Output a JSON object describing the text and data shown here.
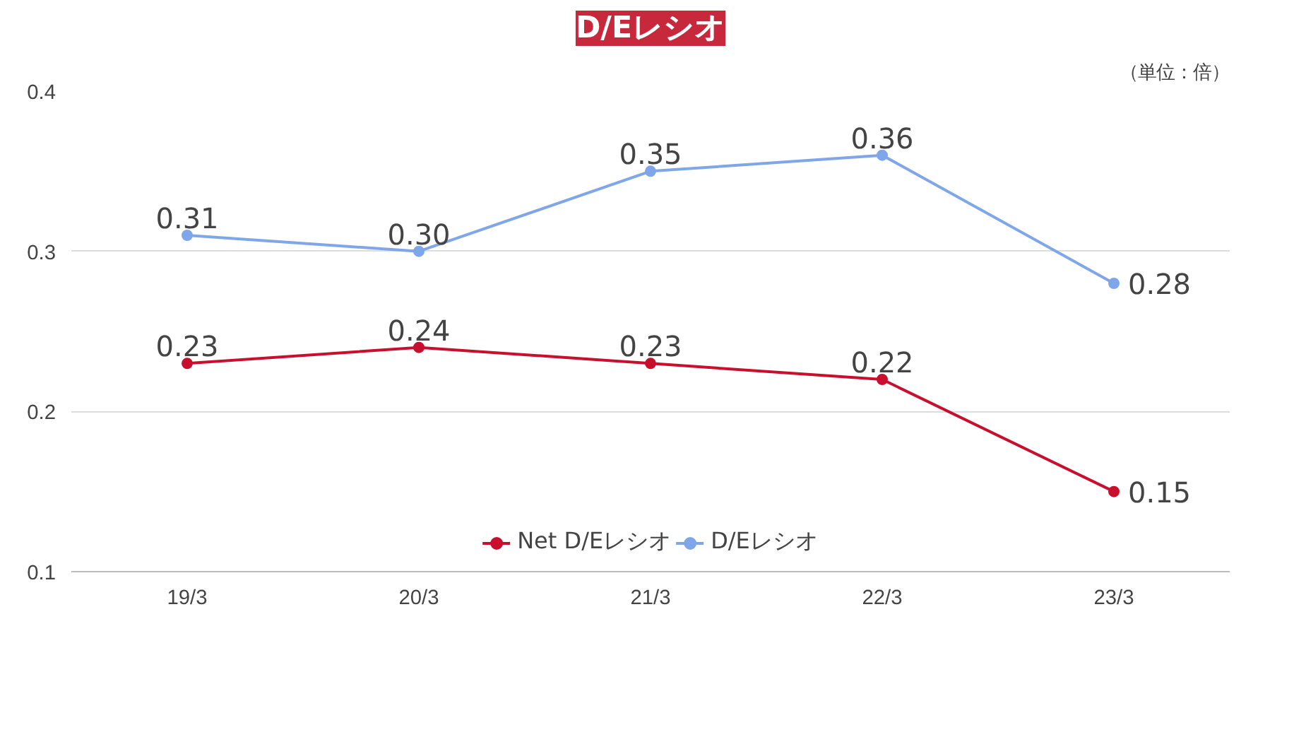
{
  "chart_data": {
    "type": "line",
    "title": "D/Eレシオ",
    "annotations": [
      "（単位：倍）"
    ],
    "categories": [
      "19/3",
      "20/3",
      "21/3",
      "22/3",
      "23/3"
    ],
    "series": [
      {
        "name": "Net D/Eレシオ",
        "color": "#c8102e",
        "values": [
          0.23,
          0.24,
          0.23,
          0.22,
          0.15
        ],
        "value_labels": [
          "0.23",
          "0.24",
          "0.23",
          "0.22",
          "0.15"
        ]
      },
      {
        "name": "D/Eレシオ",
        "color": "#7fa6e8",
        "values": [
          0.31,
          0.3,
          0.35,
          0.36,
          0.28
        ],
        "value_labels": [
          "0.31",
          "0.30",
          "0.35",
          "0.36",
          "0.28"
        ]
      }
    ],
    "ylim": [
      0.1,
      0.4
    ],
    "yticks": [
      0.1,
      0.2,
      0.3,
      0.4
    ],
    "grid": "y",
    "legend": "bottom",
    "marker": "circle",
    "line_style": "solid"
  }
}
